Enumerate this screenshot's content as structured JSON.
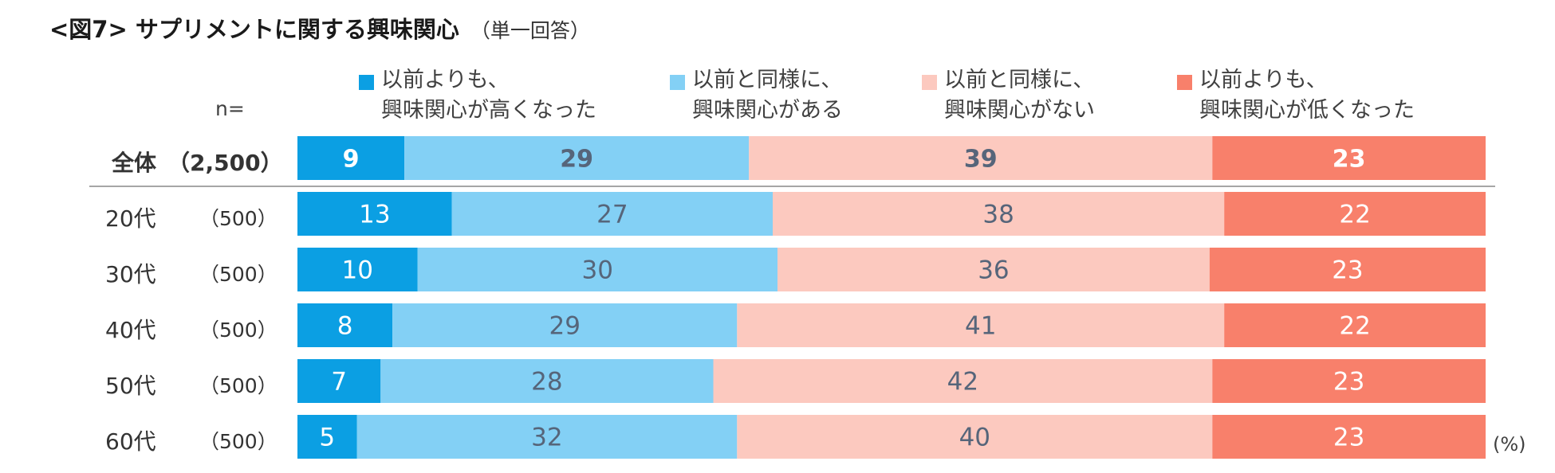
{
  "title": "<図7> サプリメントに関する興味関心",
  "subtitle": "（単一回答）",
  "n_label": "n=",
  "unit_label": "(%)",
  "colors": {
    "more_interest": "#0b9fe3",
    "same_interested": "#83d0f5",
    "same_not_interested": "#fcc9bf",
    "less_interest": "#f8806b",
    "label_dark": "#56657a",
    "label_light": "#ffffff",
    "separator": "#a6a6a6"
  },
  "legend": [
    {
      "line1": "以前よりも、",
      "line2": "興味関心が高くなった"
    },
    {
      "line1": "以前と同様に、",
      "line2": "興味関心がある"
    },
    {
      "line1": "以前と同様に、",
      "line2": "興味関心がない"
    },
    {
      "line1": "以前よりも、",
      "line2": "興味関心が低くなった"
    }
  ],
  "rows": [
    {
      "group": "全体",
      "n": "（2,500）"
    },
    {
      "group": "20代",
      "n": "（500）"
    },
    {
      "group": "30代",
      "n": "（500）"
    },
    {
      "group": "40代",
      "n": "（500）"
    },
    {
      "group": "50代",
      "n": "（500）"
    },
    {
      "group": "60代",
      "n": "（500）"
    }
  ],
  "chart_data": {
    "type": "bar",
    "orientation": "horizontal",
    "stacked": true,
    "normalized_to_100": true,
    "title": "<図7> サプリメントに関する興味関心（単一回答）",
    "categories": [
      "全体（2,500）",
      "20代（500）",
      "30代（500）",
      "40代（500）",
      "50代（500）",
      "60代（500）"
    ],
    "series": [
      {
        "name": "以前よりも、興味関心が高くなった",
        "values": [
          9,
          13,
          10,
          8,
          7,
          5
        ]
      },
      {
        "name": "以前と同様に、興味関心がある",
        "values": [
          29,
          27,
          30,
          29,
          28,
          32
        ]
      },
      {
        "name": "以前と同様に、興味関心がない",
        "values": [
          39,
          38,
          36,
          41,
          42,
          40
        ]
      },
      {
        "name": "以前よりも、興味関心が低くなった",
        "values": [
          23,
          22,
          23,
          22,
          23,
          23
        ]
      }
    ],
    "xlabel": "(%)",
    "ylabel": "",
    "xlim": [
      0,
      100
    ],
    "legend_position": "top",
    "grid": false
  }
}
